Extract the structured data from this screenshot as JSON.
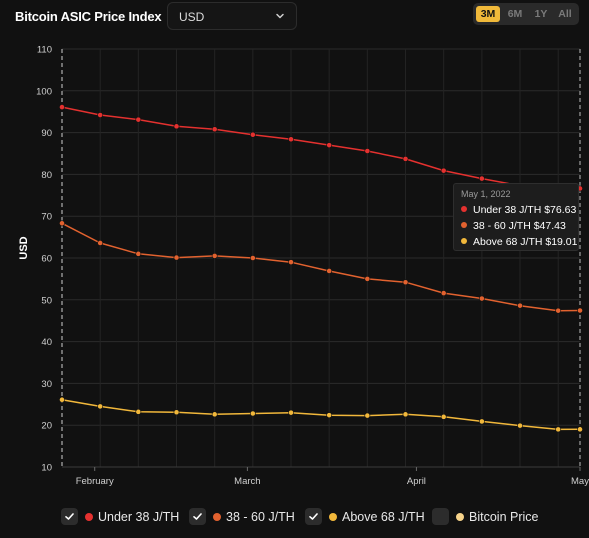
{
  "header": {
    "title": "Bitcoin ASIC Price Index",
    "currency": "USD",
    "ranges": [
      {
        "label": "3M",
        "active": true
      },
      {
        "label": "6M",
        "active": false
      },
      {
        "label": "1Y",
        "active": false
      },
      {
        "label": "All",
        "active": false
      }
    ]
  },
  "tooltip": {
    "date": "May 1, 2022",
    "rows": [
      {
        "label": "Under 38 J/TH",
        "value": "$76.63",
        "color": "#e5312f"
      },
      {
        "label": "38 - 60 J/TH",
        "value": "$47.43",
        "color": "#e2622f"
      },
      {
        "label": "Above 68 J/TH",
        "value": "$19.01",
        "color": "#f2b83b"
      }
    ]
  },
  "legend": [
    {
      "label": "Under 38 J/TH",
      "color": "#e5312f",
      "checked": true
    },
    {
      "label": "38 - 60 J/TH",
      "color": "#e2622f",
      "checked": true
    },
    {
      "label": "Above 68 J/TH",
      "color": "#f2b83b",
      "checked": true
    },
    {
      "label": "Bitcoin Price",
      "color": "#f6d38a",
      "checked": false
    }
  ],
  "chart_data": {
    "type": "line",
    "ylabel": "USD",
    "xlabel": "",
    "ylim": [
      10,
      110
    ],
    "yticks": [
      10,
      20,
      30,
      40,
      50,
      60,
      70,
      80,
      90,
      100,
      110
    ],
    "xlim": [
      "2022-01-26",
      "2022-05-01"
    ],
    "xticks": [
      {
        "label": "February",
        "date": "2022-02-01"
      },
      {
        "label": "March",
        "date": "2022-03-01"
      },
      {
        "label": "April",
        "date": "2022-04-01"
      },
      {
        "label": "May",
        "date": "2022-05-01"
      }
    ],
    "x": [
      "2022-01-26",
      "2022-02-02",
      "2022-02-09",
      "2022-02-16",
      "2022-02-23",
      "2022-03-02",
      "2022-03-09",
      "2022-03-16",
      "2022-03-23",
      "2022-03-30",
      "2022-04-06",
      "2022-04-13",
      "2022-04-20",
      "2022-04-27",
      "2022-05-01"
    ],
    "series": [
      {
        "name": "Under 38 J/TH",
        "color": "#e5312f",
        "values": [
          96.1,
          94.2,
          93.1,
          91.5,
          90.8,
          89.5,
          88.4,
          87.0,
          85.6,
          83.7,
          80.9,
          79.0,
          77.3,
          76.8,
          76.63
        ]
      },
      {
        "name": "38 - 60 J/TH",
        "color": "#e2622f",
        "values": [
          68.3,
          63.6,
          61.0,
          60.1,
          60.5,
          60.0,
          59.0,
          56.9,
          55.0,
          54.2,
          51.6,
          50.3,
          48.6,
          47.4,
          47.43
        ]
      },
      {
        "name": "Above 68 J/TH",
        "color": "#f2b83b",
        "values": [
          26.1,
          24.5,
          23.2,
          23.1,
          22.6,
          22.8,
          23.0,
          22.4,
          22.3,
          22.6,
          22.0,
          20.9,
          19.9,
          19.0,
          19.01
        ]
      }
    ],
    "grid": true,
    "hover_date": "2022-05-01"
  }
}
